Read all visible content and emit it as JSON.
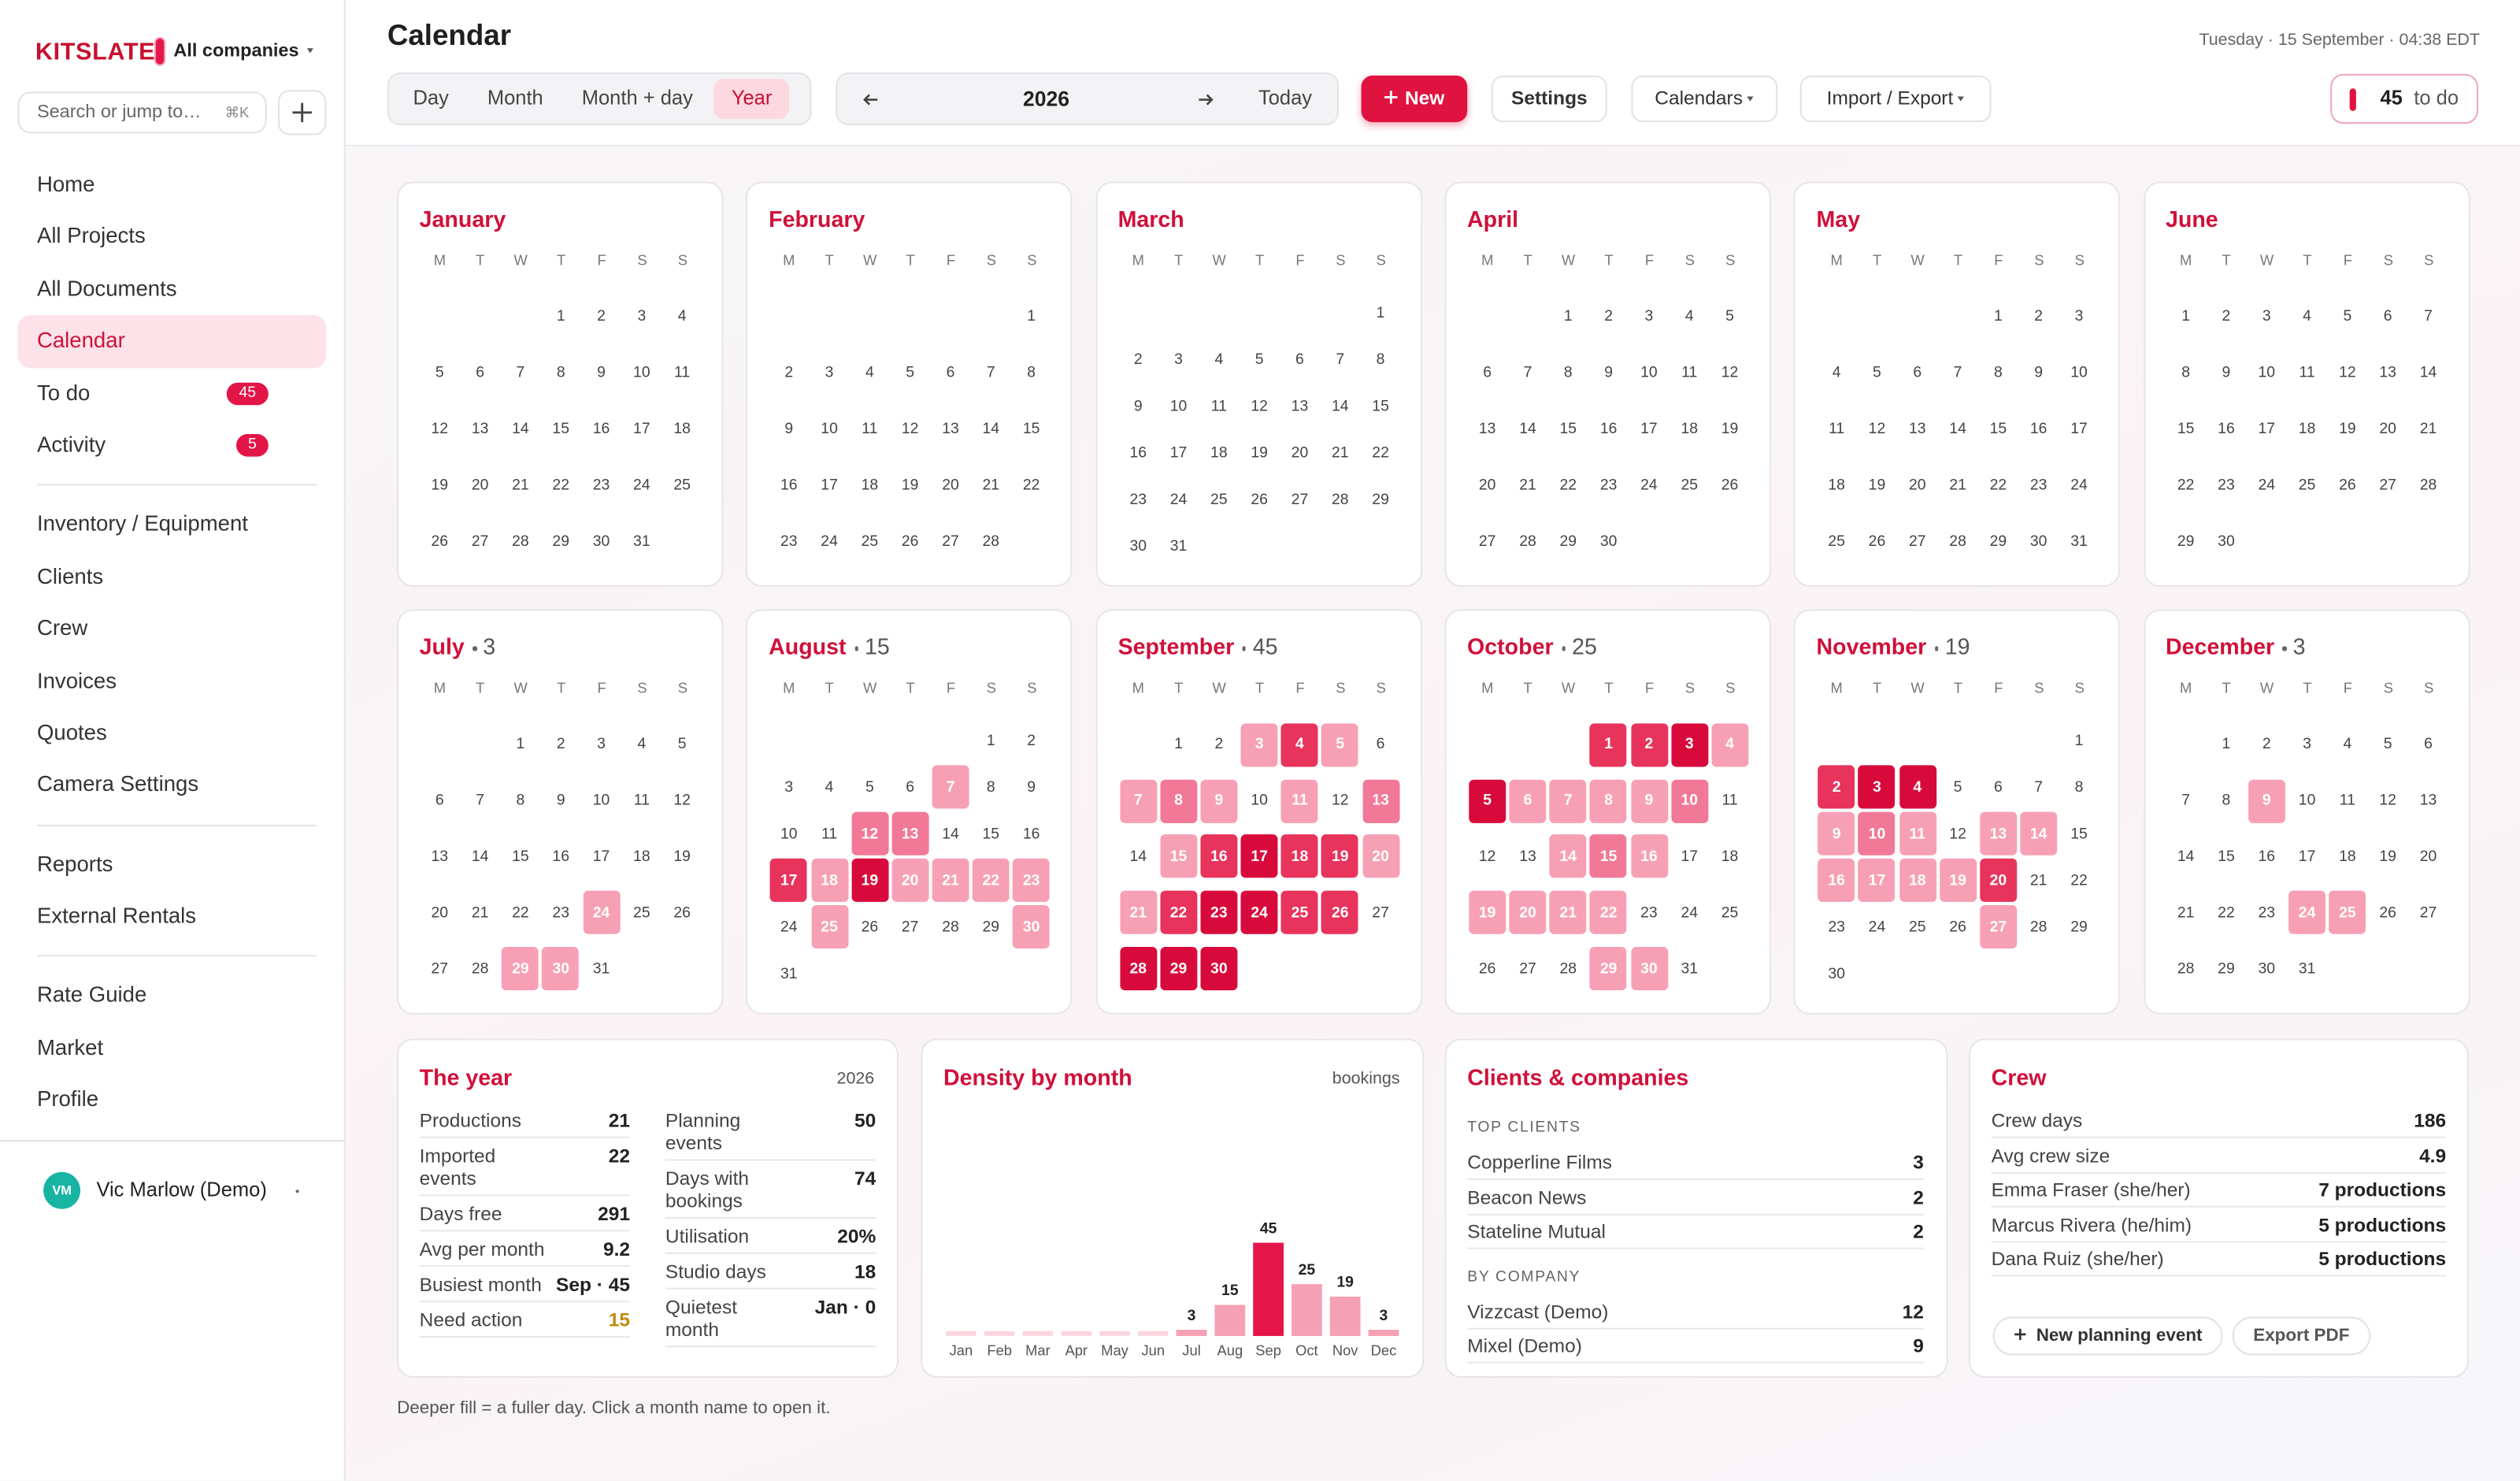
{
  "sidebar": {
    "brand": "KITSLATE",
    "workspace": "All companies",
    "search": "Search or jump to…",
    "shortcut": "⌘K",
    "nav": [
      [
        {
          "label": "Home"
        },
        {
          "label": "All Projects"
        },
        {
          "label": "All Documents"
        },
        {
          "label": "Calendar",
          "active": true
        },
        {
          "label": "To do",
          "badge": 45
        },
        {
          "label": "Activity",
          "badge": 5
        }
      ],
      [
        {
          "label": "Inventory / Equipment"
        },
        {
          "label": "Clients"
        },
        {
          "label": "Crew"
        },
        {
          "label": "Invoices"
        },
        {
          "label": "Quotes"
        },
        {
          "label": "Camera Settings"
        }
      ],
      [
        {
          "label": "Reports"
        },
        {
          "label": "External Rentals"
        }
      ],
      [
        {
          "label": "Rate Guide"
        },
        {
          "label": "Market"
        },
        {
          "label": "Profile"
        }
      ]
    ],
    "user": {
      "initials": "VM",
      "name": "Vic Marlow (Demo)"
    }
  },
  "header": {
    "title": "Calendar",
    "datetime": "Tuesday · 15 September · 04:38 EDT",
    "views": [
      "Day",
      "Month",
      "Month + day",
      "Year"
    ],
    "active_view": 3,
    "year": 2026,
    "today": "Today",
    "new": "New",
    "settings": "Settings",
    "calendars": "Calendars",
    "import_export": "Import / Export",
    "todo_count": 45,
    "todo_label": "to do"
  },
  "calendar": {
    "weekdays": [
      "M",
      "T",
      "W",
      "T",
      "F",
      "S",
      "S"
    ],
    "level_colors": [
      "#f7a0b5",
      "#f27898",
      "#e8335c",
      "#d80a3c"
    ],
    "months": [
      {
        "name": "January",
        "days": [
          null,
          null,
          null,
          1,
          2,
          3,
          4,
          5,
          6,
          7,
          8,
          9,
          10,
          11,
          12,
          13,
          14,
          15,
          16,
          17,
          18,
          19,
          20,
          21,
          22,
          23,
          24,
          25,
          26,
          27,
          28,
          29,
          30,
          31
        ],
        "busy": []
      },
      {
        "name": "February",
        "days": [
          null,
          null,
          null,
          null,
          null,
          null,
          1,
          2,
          3,
          4,
          5,
          6,
          7,
          8,
          9,
          10,
          11,
          12,
          13,
          14,
          15,
          16,
          17,
          18,
          19,
          20,
          21,
          22,
          23,
          24,
          25,
          26,
          27,
          28
        ],
        "busy": []
      },
      {
        "name": "March",
        "days": [
          null,
          null,
          null,
          null,
          null,
          null,
          1,
          2,
          3,
          4,
          5,
          6,
          7,
          8,
          9,
          10,
          11,
          12,
          13,
          14,
          15,
          16,
          17,
          18,
          19,
          20,
          21,
          22,
          23,
          24,
          25,
          26,
          27,
          28,
          29,
          30,
          31
        ],
        "busy": []
      },
      {
        "name": "April",
        "days": [
          null,
          null,
          1,
          2,
          3,
          4,
          5,
          6,
          7,
          8,
          9,
          10,
          11,
          12,
          13,
          14,
          15,
          16,
          17,
          18,
          19,
          20,
          21,
          22,
          23,
          24,
          25,
          26,
          27,
          28,
          29,
          30
        ],
        "busy": []
      },
      {
        "name": "May",
        "days": [
          null,
          null,
          null,
          null,
          1,
          2,
          3,
          4,
          5,
          6,
          7,
          8,
          9,
          10,
          11,
          12,
          13,
          14,
          15,
          16,
          17,
          18,
          19,
          20,
          21,
          22,
          23,
          24,
          25,
          26,
          27,
          28,
          29,
          30,
          31
        ],
        "busy": []
      },
      {
        "name": "June",
        "days": [
          1,
          2,
          3,
          4,
          5,
          6,
          7,
          8,
          9,
          10,
          11,
          12,
          13,
          14,
          15,
          16,
          17,
          18,
          19,
          20,
          21,
          22,
          23,
          24,
          25,
          26,
          27,
          28,
          29,
          30
        ],
        "busy": []
      },
      {
        "name": "July",
        "count": 3,
        "days": [
          null,
          null,
          1,
          2,
          3,
          4,
          5,
          6,
          7,
          8,
          9,
          10,
          11,
          12,
          13,
          14,
          15,
          16,
          17,
          18,
          19,
          20,
          21,
          22,
          23,
          24,
          25,
          26,
          27,
          28,
          29,
          30,
          31
        ],
        "busy": [
          [
            24,
            1
          ],
          [
            29,
            1
          ],
          [
            30,
            1
          ]
        ]
      },
      {
        "name": "August",
        "count": 15,
        "days": [
          null,
          null,
          null,
          null,
          null,
          1,
          2,
          3,
          4,
          5,
          6,
          7,
          8,
          9,
          10,
          11,
          12,
          13,
          14,
          15,
          16,
          17,
          18,
          19,
          20,
          21,
          22,
          23,
          24,
          25,
          26,
          27,
          28,
          29,
          30,
          31
        ],
        "busy": [
          [
            7,
            1
          ],
          [
            12,
            2
          ],
          [
            13,
            2
          ],
          [
            17,
            3
          ],
          [
            18,
            1
          ],
          [
            19,
            4
          ],
          [
            20,
            1
          ],
          [
            21,
            1
          ],
          [
            22,
            1
          ],
          [
            23,
            1
          ],
          [
            25,
            1
          ],
          [
            30,
            1
          ]
        ]
      },
      {
        "name": "September",
        "count": 45,
        "days": [
          null,
          1,
          2,
          3,
          4,
          5,
          6,
          7,
          8,
          9,
          10,
          11,
          12,
          13,
          14,
          15,
          16,
          17,
          18,
          19,
          20,
          21,
          22,
          23,
          24,
          25,
          26,
          27,
          28,
          29,
          30
        ],
        "busy": [
          [
            3,
            1
          ],
          [
            4,
            3
          ],
          [
            5,
            1
          ],
          [
            7,
            1
          ],
          [
            8,
            2
          ],
          [
            9,
            1
          ],
          [
            11,
            1
          ],
          [
            13,
            2
          ],
          [
            15,
            1
          ],
          [
            16,
            3
          ],
          [
            17,
            4
          ],
          [
            18,
            3
          ],
          [
            19,
            3
          ],
          [
            20,
            1
          ],
          [
            21,
            1
          ],
          [
            22,
            3
          ],
          [
            23,
            4
          ],
          [
            24,
            4
          ],
          [
            25,
            3
          ],
          [
            26,
            3
          ],
          [
            28,
            4
          ],
          [
            29,
            4
          ],
          [
            30,
            4
          ]
        ]
      },
      {
        "name": "October",
        "count": 25,
        "days": [
          null,
          null,
          null,
          1,
          2,
          3,
          4,
          5,
          6,
          7,
          8,
          9,
          10,
          11,
          12,
          13,
          14,
          15,
          16,
          17,
          18,
          19,
          20,
          21,
          22,
          23,
          24,
          25,
          26,
          27,
          28,
          29,
          30,
          31
        ],
        "busy": [
          [
            1,
            3
          ],
          [
            2,
            3
          ],
          [
            3,
            4
          ],
          [
            4,
            1
          ],
          [
            5,
            4
          ],
          [
            6,
            1
          ],
          [
            7,
            1
          ],
          [
            8,
            1
          ],
          [
            9,
            1
          ],
          [
            10,
            2
          ],
          [
            14,
            1
          ],
          [
            15,
            2
          ],
          [
            16,
            1
          ],
          [
            19,
            1
          ],
          [
            20,
            1
          ],
          [
            21,
            1
          ],
          [
            22,
            1
          ],
          [
            29,
            1
          ],
          [
            30,
            1
          ]
        ]
      },
      {
        "name": "November",
        "count": 19,
        "days": [
          null,
          null,
          null,
          null,
          null,
          null,
          1,
          2,
          3,
          4,
          5,
          6,
          7,
          8,
          9,
          10,
          11,
          12,
          13,
          14,
          15,
          16,
          17,
          18,
          19,
          20,
          21,
          22,
          23,
          24,
          25,
          26,
          27,
          28,
          29,
          30
        ],
        "busy": [
          [
            2,
            3
          ],
          [
            3,
            4
          ],
          [
            4,
            4
          ],
          [
            9,
            1
          ],
          [
            10,
            2
          ],
          [
            11,
            1
          ],
          [
            13,
            1
          ],
          [
            14,
            1
          ],
          [
            16,
            1
          ],
          [
            17,
            1
          ],
          [
            18,
            1
          ],
          [
            19,
            1
          ],
          [
            20,
            3
          ],
          [
            27,
            1
          ]
        ]
      },
      {
        "name": "December",
        "count": 3,
        "days": [
          null,
          1,
          2,
          3,
          4,
          5,
          6,
          7,
          8,
          9,
          10,
          11,
          12,
          13,
          14,
          15,
          16,
          17,
          18,
          19,
          20,
          21,
          22,
          23,
          24,
          25,
          26,
          27,
          28,
          29,
          30,
          31
        ],
        "busy": [
          [
            9,
            1
          ],
          [
            24,
            1
          ],
          [
            25,
            1
          ]
        ]
      }
    ]
  },
  "year_summary": {
    "title": "The year",
    "year": 2026,
    "columns": [
      [
        {
          "label": "Productions",
          "value": 21
        },
        {
          "label": "Imported events",
          "value": 22
        },
        {
          "label": "Days free",
          "value": 291
        },
        {
          "label": "Avg per month",
          "value": 9.2
        },
        {
          "label": "Busiest month",
          "value": "Sep · 45"
        },
        {
          "label": "Need action",
          "value": 15,
          "highlight": true
        }
      ],
      [
        {
          "label": "Planning events",
          "value": 50
        },
        {
          "label": "Days with bookings",
          "value": 74
        },
        {
          "label": "Utilisation",
          "value": "20%"
        },
        {
          "label": "Studio days",
          "value": 18
        },
        {
          "label": "Quietest month",
          "value": "Jan · 0"
        }
      ]
    ]
  },
  "chart_data": {
    "type": "bar",
    "title": "Density by month",
    "unit": "bookings",
    "categories": [
      "Jan",
      "Feb",
      "Mar",
      "Apr",
      "May",
      "Jun",
      "Jul",
      "Aug",
      "Sep",
      "Oct",
      "Nov",
      "Dec"
    ],
    "values": [
      0,
      0,
      0,
      0,
      0,
      0,
      3,
      15,
      45,
      25,
      19,
      3
    ],
    "ylim": [
      0,
      45
    ],
    "color": "#f6a0b5",
    "peak_color": "#e5154a"
  },
  "clients": {
    "title": "Clients & companies",
    "groups": [
      {
        "heading": "TOP CLIENTS",
        "rows": [
          {
            "label": "Copperline Films",
            "value": 3
          },
          {
            "label": "Beacon News",
            "value": 2
          },
          {
            "label": "Stateline Mutual",
            "value": 2
          }
        ]
      },
      {
        "heading": "BY COMPANY",
        "rows": [
          {
            "label": "Vizzcast (Demo)",
            "value": 12
          },
          {
            "label": "Mixel (Demo)",
            "value": 9
          }
        ]
      }
    ]
  },
  "crew": {
    "title": "Crew",
    "rows": [
      {
        "label": "Crew days",
        "value": 186
      },
      {
        "label": "Avg crew size",
        "value": 4.9
      },
      {
        "label": "Emma Fraser (she/her)",
        "value": "7 productions"
      },
      {
        "label": "Marcus Rivera (he/him)",
        "value": "5 productions"
      },
      {
        "label": "Dana Ruiz (she/her)",
        "value": "5 productions"
      }
    ],
    "actions": [
      "New planning event",
      "Export PDF"
    ]
  },
  "footnote": "Deeper fill = a fuller day. Click a month name to open it."
}
